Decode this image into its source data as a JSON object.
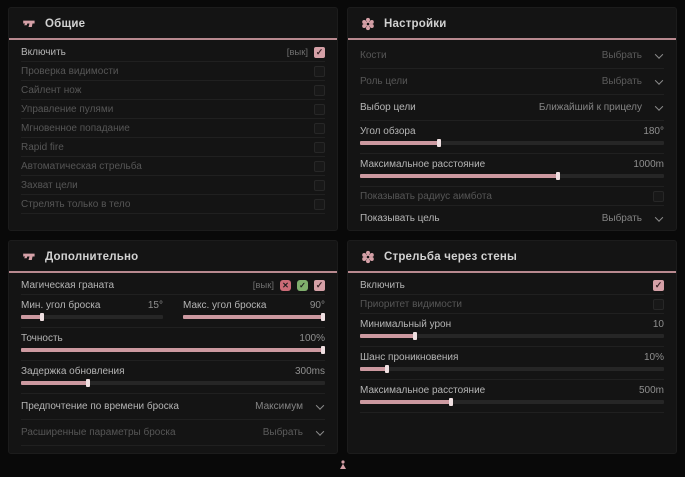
{
  "theme": {
    "accent": "#d5a0a7",
    "underline": "#b8898f",
    "panel_bg": "#141414"
  },
  "panels": [
    {
      "title": "Общие",
      "icon": "pistol-icon",
      "rows": [
        {
          "type": "toggle",
          "label": "Включить",
          "tag": "[вык]",
          "checked": true,
          "dim": false
        },
        {
          "type": "toggle",
          "label": "Проверка видимости",
          "checked": false,
          "dim": true
        },
        {
          "type": "toggle",
          "label": "Сайлент нож",
          "checked": false,
          "dim": true
        },
        {
          "type": "toggle",
          "label": "Управление пулями",
          "checked": false,
          "dim": true
        },
        {
          "type": "toggle",
          "label": "Мгновенное попадание",
          "checked": false,
          "dim": true
        },
        {
          "type": "toggle",
          "label": "Rapid fire",
          "checked": false,
          "dim": true
        },
        {
          "type": "toggle",
          "label": "Автоматическая стрельба",
          "checked": false,
          "dim": true
        },
        {
          "type": "toggle",
          "label": "Захват цели",
          "checked": false,
          "dim": true
        },
        {
          "type": "toggle",
          "label": "Стрелять только в тело",
          "checked": false,
          "dim": true
        }
      ]
    },
    {
      "title": "Настройки",
      "icon": "flower-icon",
      "rows": [
        {
          "type": "dropdown",
          "label": "Кости",
          "value": "Выбрать",
          "dim": true
        },
        {
          "type": "dropdown",
          "label": "Роль цели",
          "value": "Выбрать",
          "dim": true
        },
        {
          "type": "dropdown",
          "label": "Выбор цели",
          "value": "Ближайший к прицелу",
          "dim": false
        },
        {
          "type": "slider",
          "label": "Угол обзора",
          "value": "180°",
          "fill": 26
        },
        {
          "type": "slider",
          "label": "Максимальное расстояние",
          "value": "1000m",
          "fill": 65
        },
        {
          "type": "toggle",
          "label": "Показывать радиус аимбота",
          "checked": false,
          "dim": true
        },
        {
          "type": "dropdown",
          "label": "Показывать цель",
          "value": "Выбрать",
          "dim": false
        }
      ]
    },
    {
      "title": "Дополнительно",
      "icon": "pistol-icon",
      "rows": [
        {
          "type": "toggle",
          "label": "Магическая граната",
          "tag": "[вык]",
          "checked": true,
          "dim": false,
          "badges": [
            {
              "icon": "flower-x-icon",
              "symbol": "✕",
              "color": "#cb6b77"
            },
            {
              "icon": "flower-check-icon",
              "symbol": "✓",
              "color": "#7fae6d"
            }
          ]
        },
        {
          "type": "slider-pair",
          "sliders": [
            {
              "label": "Мин. угол броска",
              "value": "15°",
              "fill": 15
            },
            {
              "label": "Макс. угол броска",
              "value": "90°",
              "fill": 100
            }
          ]
        },
        {
          "type": "slider",
          "label": "Точность",
          "value": "100%",
          "fill": 100
        },
        {
          "type": "slider",
          "label": "Задержка обновления",
          "value": "300ms",
          "fill": 22
        },
        {
          "type": "dropdown",
          "label": "Предпочтение по времени броска",
          "value": "Максимум",
          "dim": false
        },
        {
          "type": "dropdown",
          "label": "Расширенные параметры броска",
          "value": "Выбрать",
          "dim": true
        }
      ]
    },
    {
      "title": "Стрельба через стены",
      "icon": "flower-icon",
      "rows": [
        {
          "type": "toggle",
          "label": "Включить",
          "checked": true,
          "dim": false
        },
        {
          "type": "toggle",
          "label": "Приоритет видимости",
          "checked": false,
          "dim": true
        },
        {
          "type": "slider",
          "label": "Минимальный урон",
          "value": "10",
          "fill": 18
        },
        {
          "type": "slider",
          "label": "Шанс проникновения",
          "value": "10%",
          "fill": 9
        },
        {
          "type": "slider",
          "label": "Максимальное расстояние",
          "value": "500m",
          "fill": 30
        }
      ]
    }
  ],
  "footer": {
    "marker": "figure-marker"
  }
}
